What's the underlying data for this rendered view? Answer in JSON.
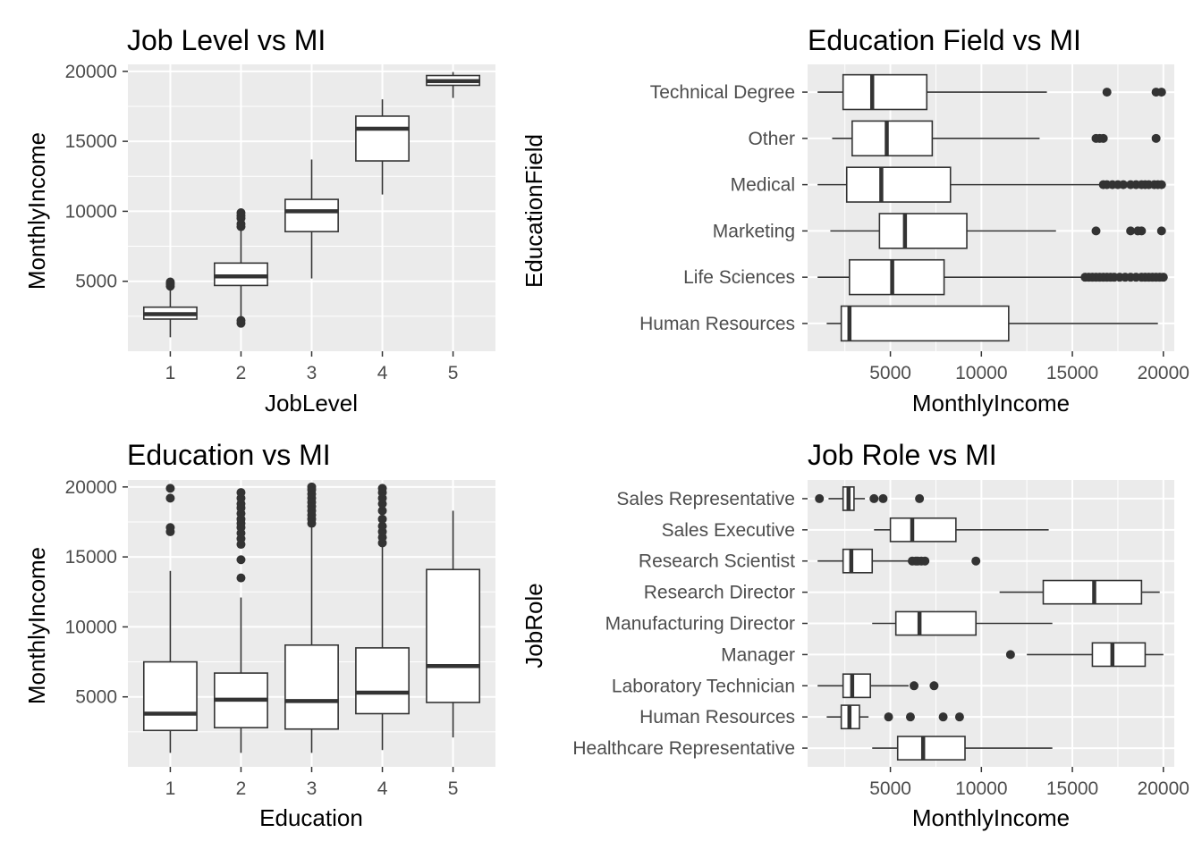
{
  "chart_data": [
    {
      "type": "boxplot",
      "orientation": "vertical",
      "title": "Job Level vs MI",
      "xlabel": "JobLevel",
      "ylabel": "MonthlyIncome",
      "ylim": [
        0,
        20500
      ],
      "yticks": [
        5000,
        10000,
        15000,
        20000
      ],
      "tick_labels": [
        "5000",
        "10000",
        "15000",
        "20000"
      ],
      "categories": [
        "1",
        "2",
        "3",
        "4",
        "5"
      ],
      "boxes": [
        {
          "category": "1",
          "lower": 1000,
          "q1": 2300,
          "median": 2650,
          "q3": 3150,
          "upper": 4400,
          "outliers": [
            4650,
            4800,
            4950
          ]
        },
        {
          "category": "2",
          "lower": 2500,
          "q1": 4700,
          "median": 5350,
          "q3": 6300,
          "upper": 8700,
          "outliers": [
            2000,
            2200,
            8900,
            9100,
            9500,
            9700,
            9900
          ]
        },
        {
          "category": "3",
          "lower": 5200,
          "q1": 8550,
          "median": 10000,
          "q3": 10850,
          "upper": 13700,
          "outliers": []
        },
        {
          "category": "4",
          "lower": 11200,
          "q1": 13600,
          "median": 15900,
          "q3": 16800,
          "upper": 18000,
          "outliers": []
        },
        {
          "category": "5",
          "lower": 18100,
          "q1": 19000,
          "median": 19300,
          "q3": 19700,
          "upper": 19950,
          "outliers": []
        }
      ]
    },
    {
      "type": "boxplot",
      "orientation": "horizontal",
      "title": "Education Field vs MI",
      "xlabel": "MonthlyIncome",
      "ylabel": "EducationField",
      "xlim": [
        450,
        20600
      ],
      "xticks": [
        5000,
        10000,
        15000,
        20000
      ],
      "tick_labels": [
        "5000",
        "10000",
        "15000",
        "20000"
      ],
      "categories": [
        "Human Resources",
        "Life Sciences",
        "Marketing",
        "Medical",
        "Other",
        "Technical Degree"
      ],
      "boxes": [
        {
          "category": "Human Resources",
          "lower": 1500,
          "q1": 2300,
          "median": 2750,
          "q3": 11500,
          "upper": 19700,
          "outliers": []
        },
        {
          "category": "Life Sciences",
          "lower": 1000,
          "q1": 2750,
          "median": 5100,
          "q3": 7950,
          "upper": 15500,
          "outliers": [
            15700,
            15900,
            16100,
            16300,
            16500,
            16700,
            16900,
            17100,
            17300,
            17600,
            17900,
            18200,
            18500,
            18800,
            19000,
            19200,
            19400,
            19600,
            19800,
            20000
          ]
        },
        {
          "category": "Marketing",
          "lower": 1700,
          "q1": 4400,
          "median": 5800,
          "q3": 9200,
          "upper": 14100,
          "outliers": [
            16300,
            18200,
            18600,
            18800,
            19900
          ]
        },
        {
          "category": "Medical",
          "lower": 1000,
          "q1": 2600,
          "median": 4500,
          "q3": 8300,
          "upper": 16500,
          "outliers": [
            16700,
            16900,
            17200,
            17500,
            17800,
            18200,
            18500,
            18800,
            19000,
            19200,
            19500,
            19700,
            19900
          ]
        },
        {
          "category": "Other",
          "lower": 1800,
          "q1": 2900,
          "median": 4800,
          "q3": 7300,
          "upper": 13200,
          "outliers": [
            16300,
            16500,
            16700,
            19600
          ]
        },
        {
          "category": "Technical Degree",
          "lower": 1000,
          "q1": 2400,
          "median": 4000,
          "q3": 7000,
          "upper": 13600,
          "outliers": [
            16900,
            19600,
            19900
          ]
        }
      ]
    },
    {
      "type": "boxplot",
      "orientation": "vertical",
      "title": "Education vs MI",
      "xlabel": "Education",
      "ylabel": "MonthlyIncome",
      "ylim": [
        0,
        20500
      ],
      "yticks": [
        5000,
        10000,
        15000,
        20000
      ],
      "tick_labels": [
        "5000",
        "10000",
        "15000",
        "20000"
      ],
      "categories": [
        "1",
        "2",
        "3",
        "4",
        "5"
      ],
      "boxes": [
        {
          "category": "1",
          "lower": 1000,
          "q1": 2600,
          "median": 3800,
          "q3": 7500,
          "upper": 14000,
          "outliers": [
            16800,
            17100,
            19200,
            19900
          ]
        },
        {
          "category": "2",
          "lower": 1000,
          "q1": 2800,
          "median": 4800,
          "q3": 6700,
          "upper": 12100,
          "outliers": [
            13500,
            14800,
            15900,
            16300,
            16700,
            17100,
            17400,
            17700,
            18100,
            18500,
            18800,
            19200,
            19600
          ]
        },
        {
          "category": "3",
          "lower": 1000,
          "q1": 2700,
          "median": 4700,
          "q3": 8700,
          "upper": 17200,
          "outliers": [
            17400,
            17700,
            18000,
            18300,
            18600,
            18900,
            19200,
            19500,
            19800,
            20000
          ]
        },
        {
          "category": "4",
          "lower": 1200,
          "q1": 3800,
          "median": 5300,
          "q3": 8500,
          "upper": 15800,
          "outliers": [
            16000,
            16400,
            16800,
            17200,
            17700,
            18300,
            18800,
            19200,
            19600,
            19900
          ]
        },
        {
          "category": "5",
          "lower": 2100,
          "q1": 4600,
          "median": 7200,
          "q3": 14100,
          "upper": 18300,
          "outliers": []
        }
      ]
    },
    {
      "type": "boxplot",
      "orientation": "horizontal",
      "title": "Job Role vs MI",
      "xlabel": "MonthlyIncome",
      "ylabel": "JobRole",
      "xlim": [
        450,
        20600
      ],
      "xticks": [
        5000,
        10000,
        15000,
        20000
      ],
      "tick_labels": [
        "5000",
        "10000",
        "15000",
        "20000"
      ],
      "categories": [
        "Healthcare Representative",
        "Human Resources",
        "Laboratory Technician",
        "Manager",
        "Manufacturing Director",
        "Research Director",
        "Research Scientist",
        "Sales Executive",
        "Sales Representative"
      ],
      "boxes": [
        {
          "category": "Healthcare Representative",
          "lower": 4000,
          "q1": 5400,
          "median": 6800,
          "q3": 9100,
          "upper": 13900,
          "outliers": []
        },
        {
          "category": "Human Resources",
          "lower": 1500,
          "q1": 2300,
          "median": 2750,
          "q3": 3300,
          "upper": 3800,
          "outliers": [
            4900,
            6100,
            7900,
            8800
          ]
        },
        {
          "category": "Laboratory Technician",
          "lower": 1000,
          "q1": 2400,
          "median": 2900,
          "q3": 3900,
          "upper": 6000,
          "outliers": [
            6300,
            7400
          ]
        },
        {
          "category": "Manager",
          "lower": 12500,
          "q1": 16100,
          "median": 17200,
          "q3": 19000,
          "upper": 20000,
          "outliers": [
            11600
          ]
        },
        {
          "category": "Manufacturing Director",
          "lower": 4000,
          "q1": 5300,
          "median": 6600,
          "q3": 9700,
          "upper": 13900,
          "outliers": []
        },
        {
          "category": "Research Director",
          "lower": 11000,
          "q1": 13400,
          "median": 16200,
          "q3": 18800,
          "upper": 19800,
          "outliers": []
        },
        {
          "category": "Research Scientist",
          "lower": 1000,
          "q1": 2400,
          "median": 2850,
          "q3": 4000,
          "upper": 6000,
          "outliers": [
            6200,
            6400,
            6500,
            6700,
            6900,
            9700
          ]
        },
        {
          "category": "Sales Executive",
          "lower": 4100,
          "q1": 5000,
          "median": 6200,
          "q3": 8600,
          "upper": 13700,
          "outliers": []
        },
        {
          "category": "Sales Representative",
          "lower": 1600,
          "q1": 2400,
          "median": 2700,
          "q3": 3000,
          "upper": 3600,
          "outliers": [
            1100,
            4100,
            4600,
            6600
          ]
        }
      ]
    }
  ]
}
